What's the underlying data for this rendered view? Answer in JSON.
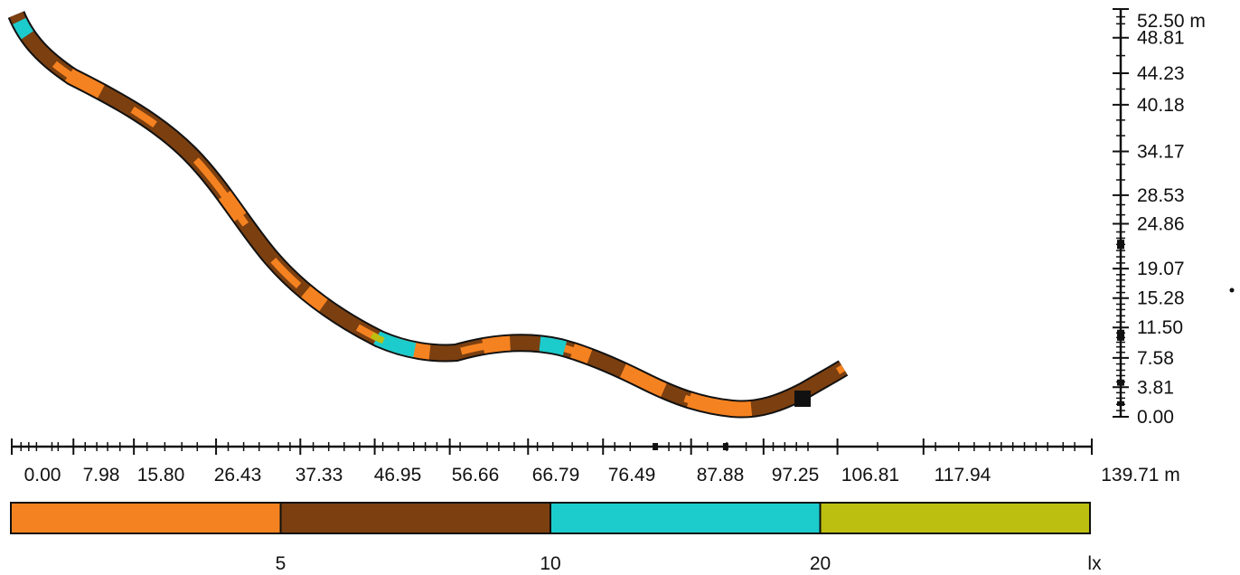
{
  "diagram": {
    "x_axis": {
      "unit": "m",
      "labels": [
        "0.00",
        "7.98",
        "15.80",
        "26.43",
        "37.33",
        "46.95",
        "56.66",
        "66.79",
        "76.49",
        "87.88",
        "97.25",
        "106.81",
        "117.94"
      ],
      "end_label": "139.71 m"
    },
    "y_axis": {
      "unit": "m",
      "labels": [
        "0.00",
        "3.81",
        "7.58",
        "11.50",
        "15.28",
        "19.07",
        "24.86",
        "28.53",
        "34.17",
        "40.18",
        "44.23",
        "48.81"
      ],
      "top_label": "52.50 m"
    },
    "legend": {
      "colors": [
        "#f58220",
        "#7b3f10",
        "#1ccbcc",
        "#bcbf10"
      ],
      "thresholds": [
        "5",
        "10",
        "20"
      ],
      "unit": "lx"
    },
    "road": {
      "outline_color": "#111111",
      "base_color": "#7b3f10",
      "marker": "black-square-marker"
    }
  }
}
